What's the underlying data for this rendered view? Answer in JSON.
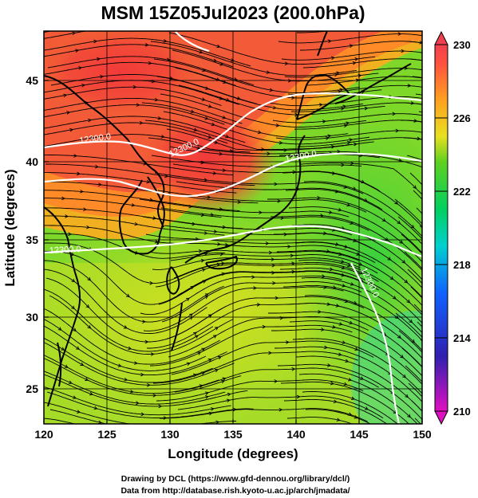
{
  "figure": {
    "title": "MSM 15Z05Jul2023 (200.0hPa)",
    "credit_line1": "Drawing by DCL (https://www.gfd-dennou.org/library/dcl/)",
    "credit_line2": "Data from http://database.rish.kyoto-u.ac.jp/arch/jmadata/"
  },
  "map": {
    "xlabel": "Longitude (degrees)",
    "ylabel": "Latitude  (degrees)",
    "lon_range": [
      120,
      150
    ],
    "lat_range": [
      22.4,
      47.6
    ],
    "lon_ticks": [
      "120",
      "125",
      "130",
      "135",
      "140",
      "145",
      "150"
    ],
    "lat_ticks": [
      "25",
      "30",
      "35",
      "40",
      "45"
    ],
    "contour_labels": [
      "12300.0",
      "12300.0",
      "12300.0",
      "12300.0",
      "12300.0"
    ]
  },
  "colorbar": {
    "labels": [
      "230",
      "226",
      "222",
      "218",
      "214",
      "210"
    ],
    "colors": [
      "#ff00ff",
      "#2020c0",
      "#0090ff",
      "#00e0b0",
      "#20d040",
      "#90e020",
      "#f0e020",
      "#ffa020",
      "#ff5a40",
      "#f04050"
    ]
  }
}
